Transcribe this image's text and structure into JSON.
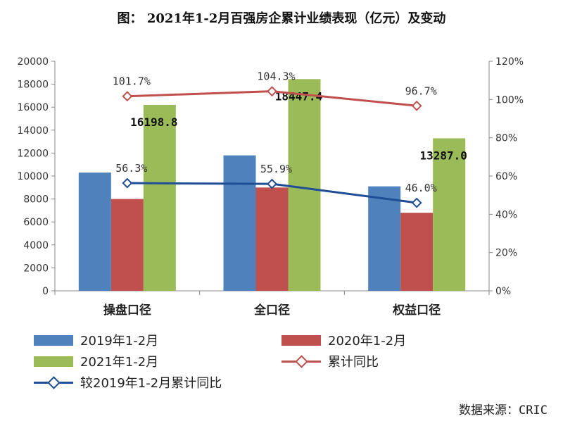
{
  "title": "图：  2021年1-2月百强房企累计业绩表现（亿元）及变动",
  "source": "数据来源：CRIC",
  "chart_data": {
    "type": "bar",
    "categories": [
      "操盘口径",
      "全口径",
      "权益口径"
    ],
    "series": [
      {
        "name": "2019年1-2月",
        "axis": "left",
        "color": "#4f81bd",
        "values": [
          10300,
          11800,
          9100
        ]
      },
      {
        "name": "2020年1-2月",
        "axis": "left",
        "color": "#c0504d",
        "values": [
          8000,
          9000,
          6800
        ]
      },
      {
        "name": "2021年1-2月",
        "axis": "left",
        "color": "#9bbb59",
        "values": [
          16198.8,
          18447.4,
          13287.0
        ],
        "labels": [
          "16198.8",
          "18447.4",
          "13287.0"
        ]
      }
    ],
    "lines": [
      {
        "name": "累计同比",
        "axis": "right",
        "color": "#c0504d",
        "values": [
          101.7,
          104.3,
          96.7
        ],
        "labels": [
          "101.7%",
          "104.3%",
          "96.7%"
        ]
      },
      {
        "name": "较2019年1-2月累计同比",
        "axis": "right",
        "color": "#1f4e96",
        "values": [
          56.3,
          55.9,
          46.0
        ],
        "labels": [
          "56.3%",
          "55.9%",
          "46.0%"
        ]
      }
    ],
    "y_left": {
      "min": 0,
      "max": 20000,
      "ticks": [
        "0",
        "2000",
        "4000",
        "6000",
        "8000",
        "10000",
        "12000",
        "14000",
        "16000",
        "18000",
        "20000"
      ]
    },
    "y_right": {
      "min": 0,
      "max": 120,
      "ticks": [
        "0%",
        "20%",
        "40%",
        "60%",
        "80%",
        "100%",
        "120%"
      ]
    },
    "legend": [
      "2019年1-2月",
      "2020年1-2月",
      "2021年1-2月",
      "累计同比",
      "较2019年1-2月累计同比"
    ],
    "legend_position": "bottom"
  }
}
